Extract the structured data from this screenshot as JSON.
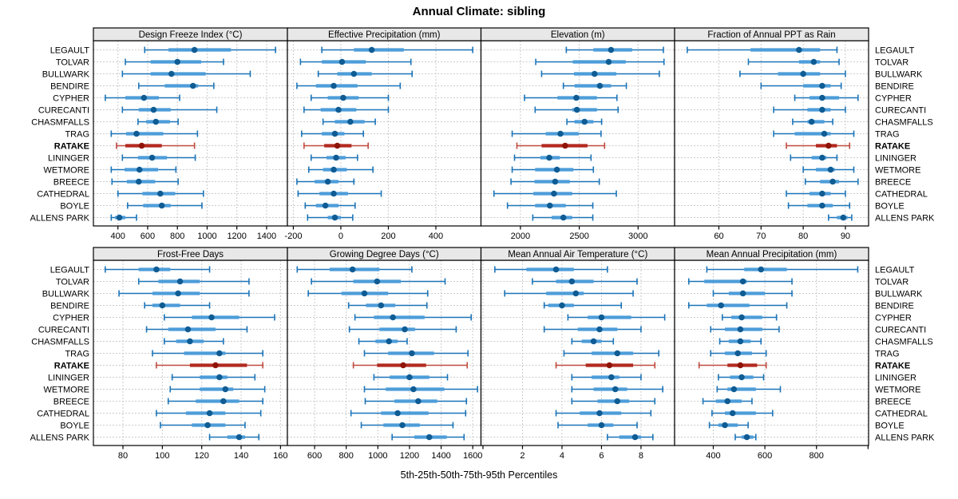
{
  "title": "Annual Climate: sibling",
  "xlabel": "5th-25th-50th-75th-95th Percentiles",
  "colors": {
    "header_bg": "#e8e8e8",
    "panel_border": "#000000",
    "grid": "#cbcbcb",
    "text": "#000000",
    "blue_whisker": "#1b74b8",
    "blue_box": "#4d9dd9",
    "blue_dot": "#0f5c94",
    "red_whisker": "#c04a3e",
    "red_box": "#b22a20",
    "red_dot": "#8f1408"
  },
  "chart_data": {
    "type": "trellis-percentile-dotplot",
    "percentiles": [
      5,
      25,
      50,
      75,
      95
    ],
    "highlight": "RATAKE",
    "stations": [
      "LEGAULT",
      "TOLVAR",
      "BULLWARK",
      "BENDIRE",
      "CYPHER",
      "CURECANTI",
      "CHASMFALLS",
      "TRAG",
      "RATAKE",
      "LININGER",
      "WETMORE",
      "BREECE",
      "CATHEDRAL",
      "BOYLE",
      "ALLENS PARK"
    ],
    "panels": [
      {
        "title": "Design Freeze Index (°C)",
        "xlim": [
          235,
          1540
        ],
        "ticks": [
          400,
          600,
          800,
          1000,
          1200,
          1400
        ],
        "extra_ticks": [],
        "values": [
          [
            580,
            740,
            915,
            1160,
            1460
          ],
          [
            450,
            620,
            800,
            960,
            1110
          ],
          [
            430,
            620,
            760,
            990,
            1290
          ],
          [
            540,
            715,
            905,
            940,
            1045
          ],
          [
            315,
            450,
            575,
            675,
            815
          ],
          [
            430,
            540,
            640,
            755,
            1065
          ],
          [
            535,
            590,
            655,
            750,
            805
          ],
          [
            355,
            455,
            525,
            705,
            935
          ],
          [
            390,
            450,
            560,
            695,
            915
          ],
          [
            430,
            535,
            630,
            730,
            920
          ],
          [
            355,
            445,
            545,
            670,
            790
          ],
          [
            360,
            460,
            540,
            650,
            805
          ],
          [
            400,
            565,
            685,
            785,
            975
          ],
          [
            465,
            570,
            695,
            755,
            965
          ],
          [
            355,
            380,
            410,
            450,
            525
          ]
        ]
      },
      {
        "title": "Effective Precipitation (mm)",
        "xlim": [
          -225,
          590
        ],
        "ticks": [
          -200,
          0,
          200,
          400
        ],
        "extra_ticks": [],
        "values": [
          [
            -80,
            55,
            130,
            265,
            555
          ],
          [
            -170,
            -80,
            5,
            105,
            295
          ],
          [
            -95,
            -15,
            55,
            130,
            300
          ],
          [
            -185,
            -105,
            -30,
            70,
            250
          ],
          [
            -125,
            -55,
            10,
            75,
            200
          ],
          [
            -155,
            -85,
            -10,
            65,
            200
          ],
          [
            -75,
            -25,
            40,
            100,
            145
          ],
          [
            -165,
            -80,
            -25,
            15,
            95
          ],
          [
            -155,
            -70,
            -15,
            45,
            115
          ],
          [
            -125,
            -60,
            -20,
            20,
            70
          ],
          [
            -135,
            -75,
            -30,
            25,
            135
          ],
          [
            -185,
            -110,
            -55,
            -10,
            55
          ],
          [
            -180,
            -90,
            -30,
            30,
            170
          ],
          [
            -150,
            -105,
            -65,
            -10,
            60
          ],
          [
            -140,
            -55,
            -25,
            0,
            50
          ]
        ]
      },
      {
        "title": "Elevation (m)",
        "xlim": [
          1665,
          3310
        ],
        "ticks": [
          2000,
          2500,
          3000
        ],
        "extra_ticks": [],
        "values": [
          [
            2390,
            2620,
            2770,
            2950,
            3215
          ],
          [
            2130,
            2445,
            2750,
            2895,
            3220
          ],
          [
            2180,
            2455,
            2630,
            2815,
            3180
          ],
          [
            2365,
            2460,
            2675,
            2770,
            2900
          ],
          [
            2035,
            2315,
            2475,
            2650,
            2820
          ],
          [
            2125,
            2440,
            2480,
            2650,
            2830
          ],
          [
            2395,
            2460,
            2545,
            2620,
            2690
          ],
          [
            1930,
            2215,
            2340,
            2495,
            2685
          ],
          [
            1970,
            2180,
            2380,
            2570,
            2715
          ],
          [
            1950,
            2170,
            2245,
            2335,
            2600
          ],
          [
            1930,
            2125,
            2310,
            2450,
            2620
          ],
          [
            1920,
            2120,
            2295,
            2420,
            2670
          ],
          [
            1775,
            2110,
            2285,
            2440,
            2815
          ],
          [
            1890,
            2125,
            2250,
            2385,
            2615
          ],
          [
            2105,
            2265,
            2365,
            2440,
            2615
          ]
        ]
      },
      {
        "title": "Fraction of Annual PPT as Rain",
        "xlim": [
          49.5,
          95.5
        ],
        "ticks": [
          60,
          70,
          80,
          90
        ],
        "extra_ticks": [],
        "values": [
          [
            52.5,
            67.5,
            79,
            84,
            88
          ],
          [
            67,
            79,
            82.5,
            84,
            88.5
          ],
          [
            65,
            74,
            80,
            84,
            90
          ],
          [
            70,
            80,
            84.5,
            86.5,
            89
          ],
          [
            78,
            81.5,
            84.5,
            88.5,
            93
          ],
          [
            73,
            81,
            84.5,
            86.5,
            90
          ],
          [
            77.5,
            81,
            82,
            85,
            87
          ],
          [
            73,
            78,
            85,
            86.5,
            92
          ],
          [
            76,
            83,
            86,
            88,
            91
          ],
          [
            77,
            82,
            84.5,
            85.5,
            88
          ],
          [
            80,
            83,
            86.5,
            87.5,
            92
          ],
          [
            80.5,
            84,
            87,
            88.5,
            93
          ],
          [
            76,
            81.5,
            84.5,
            86.5,
            90
          ],
          [
            76.5,
            81,
            84.5,
            87,
            91
          ],
          [
            86,
            88,
            89.5,
            90.5,
            91.5
          ]
        ]
      },
      {
        "title": "Frost-Free Days",
        "xlim": [
          65,
          163.5
        ],
        "ticks": [
          80,
          100,
          120,
          140,
          160
        ],
        "extra_ticks": [],
        "values": [
          [
            71,
            88,
            97,
            104,
            124
          ],
          [
            88,
            98,
            109,
            119,
            144
          ],
          [
            78,
            95,
            108,
            119,
            144
          ],
          [
            91,
            95,
            100,
            109,
            124
          ],
          [
            101,
            115,
            125,
            139,
            157
          ],
          [
            92,
            103,
            113,
            127,
            143
          ],
          [
            101,
            107,
            114,
            121,
            131
          ],
          [
            95,
            111,
            129,
            132,
            151
          ],
          [
            97,
            114,
            127,
            143,
            151
          ],
          [
            105,
            119,
            129,
            133,
            147
          ],
          [
            104,
            119,
            132,
            136,
            152
          ],
          [
            103,
            117,
            131,
            139,
            151
          ],
          [
            97,
            112,
            124,
            132,
            150
          ],
          [
            99,
            115,
            123,
            132,
            142
          ],
          [
            124,
            133,
            139,
            142,
            149
          ]
        ]
      },
      {
        "title": "Growing Degree Days (°C)",
        "xlim": [
          428,
          1652
        ],
        "ticks": [
          600,
          800,
          1000,
          1200,
          1400,
          1600
        ],
        "extra_ticks": [],
        "values": [
          [
            490,
            695,
            840,
            1010,
            1215
          ],
          [
            580,
            845,
            995,
            1145,
            1425
          ],
          [
            560,
            770,
            915,
            1065,
            1315
          ],
          [
            815,
            925,
            1020,
            1110,
            1310
          ],
          [
            855,
            975,
            1095,
            1295,
            1590
          ],
          [
            820,
            1010,
            1170,
            1235,
            1495
          ],
          [
            880,
            985,
            1070,
            1125,
            1185
          ],
          [
            915,
            1065,
            1215,
            1355,
            1570
          ],
          [
            845,
            995,
            1160,
            1305,
            1565
          ],
          [
            975,
            1075,
            1200,
            1325,
            1440
          ],
          [
            915,
            1050,
            1225,
            1420,
            1630
          ],
          [
            920,
            1105,
            1255,
            1375,
            1560
          ],
          [
            830,
            1020,
            1125,
            1320,
            1555
          ],
          [
            895,
            1035,
            1155,
            1265,
            1475
          ],
          [
            1090,
            1230,
            1325,
            1435,
            1545
          ]
        ]
      },
      {
        "title": "Mean Annual Air Temperature (°C)",
        "xlim": [
          -0.1,
          9.7
        ],
        "ticks": [
          2,
          4,
          6,
          8
        ],
        "extra_ticks": [
          0
        ],
        "values": [
          [
            0.6,
            2.2,
            3.7,
            4.6,
            6.3
          ],
          [
            2.5,
            3.7,
            4.5,
            5.6,
            7.8
          ],
          [
            1.1,
            3.2,
            4.7,
            5.1,
            7.6
          ],
          [
            3.1,
            3.3,
            4.0,
            4.6,
            7.0
          ],
          [
            4.3,
            5.3,
            6.0,
            7.5,
            9.2
          ],
          [
            3.1,
            4.8,
            5.9,
            6.8,
            8.0
          ],
          [
            4.5,
            5.0,
            5.6,
            6.0,
            6.6
          ],
          [
            4.1,
            5.5,
            6.8,
            7.6,
            8.9
          ],
          [
            3.7,
            5.2,
            6.4,
            7.6,
            8.7
          ],
          [
            4.5,
            5.5,
            6.5,
            6.9,
            8.0
          ],
          [
            4.5,
            5.6,
            6.7,
            7.3,
            9.1
          ],
          [
            4.5,
            5.8,
            6.8,
            7.4,
            8.7
          ],
          [
            3.7,
            4.9,
            5.9,
            7.0,
            8.5
          ],
          [
            3.8,
            5.3,
            6.0,
            6.6,
            7.8
          ],
          [
            6.3,
            6.9,
            7.7,
            8.0,
            8.6
          ]
        ]
      },
      {
        "title": "Mean Annual Precipitation (mm)",
        "xlim": [
          250,
          1002
        ],
        "ticks": [
          400,
          600,
          800
        ],
        "extra_ticks": [
          1000
        ],
        "values": [
          [
            375,
            520,
            585,
            685,
            960
          ],
          [
            305,
            365,
            515,
            530,
            705
          ],
          [
            400,
            460,
            515,
            600,
            705
          ],
          [
            305,
            375,
            430,
            540,
            685
          ],
          [
            435,
            470,
            510,
            590,
            645
          ],
          [
            390,
            445,
            505,
            590,
            655
          ],
          [
            425,
            460,
            505,
            545,
            585
          ],
          [
            390,
            445,
            495,
            550,
            605
          ],
          [
            345,
            455,
            505,
            570,
            605
          ],
          [
            420,
            465,
            510,
            555,
            595
          ],
          [
            415,
            455,
            480,
            565,
            660
          ],
          [
            360,
            410,
            455,
            510,
            550
          ],
          [
            395,
            445,
            475,
            565,
            630
          ],
          [
            385,
            420,
            445,
            495,
            535
          ],
          [
            485,
            510,
            530,
            555,
            565
          ]
        ]
      }
    ]
  }
}
